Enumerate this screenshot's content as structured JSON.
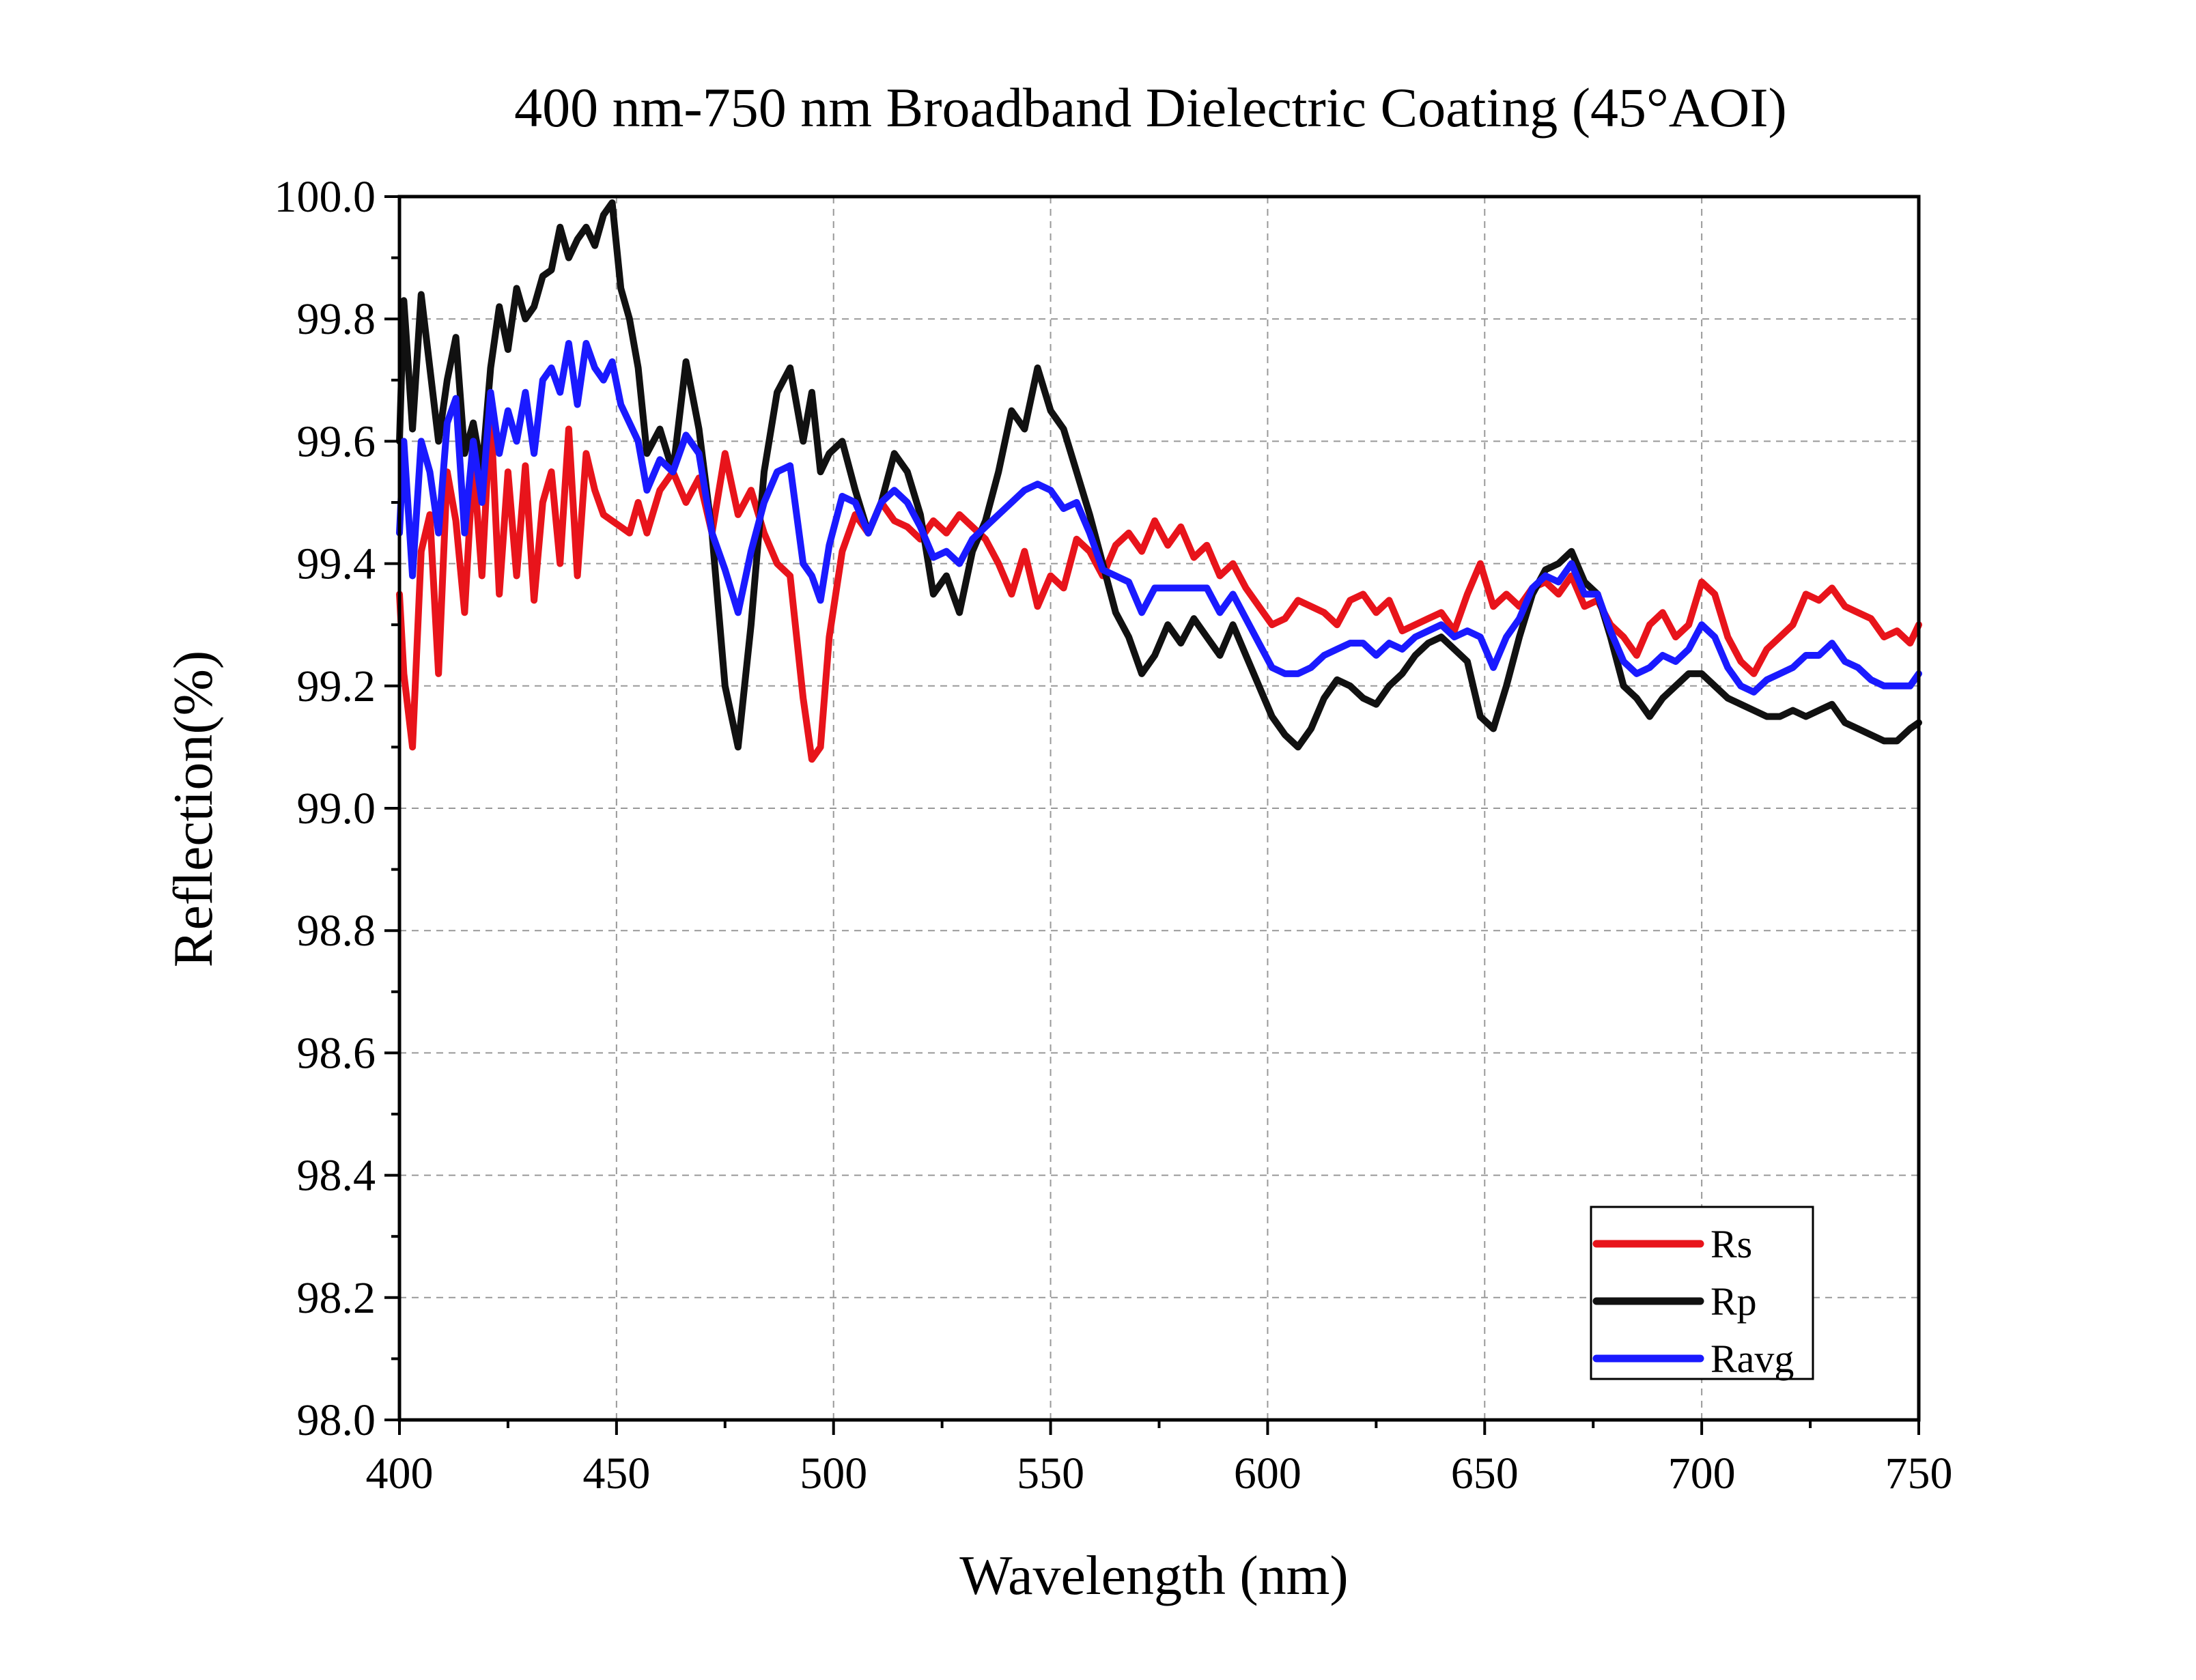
{
  "chart_data": {
    "type": "line",
    "title": "400 nm-750 nm Broadband Dielectric Coating (45°AOI)",
    "xlabel": "Wavelength (nm)",
    "ylabel": "Reflection(%)",
    "xlim": [
      400,
      750
    ],
    "ylim": [
      98.0,
      100.0
    ],
    "xticks": [
      "400",
      "450",
      "500",
      "550",
      "600",
      "650",
      "700",
      "750"
    ],
    "yticks": [
      "98.0",
      "98.2",
      "98.4",
      "98.6",
      "98.8",
      "99.0",
      "99.2",
      "99.4",
      "99.6",
      "99.8",
      "100.0"
    ],
    "grid": true,
    "legend_position": "bottom-right",
    "series": [
      {
        "name": "Rs",
        "color": "#e8141b",
        "x": [
          400,
          401,
          403,
          405,
          407,
          409,
          411,
          413,
          415,
          417,
          419,
          421,
          423,
          425,
          427,
          429,
          431,
          433,
          435,
          437,
          439,
          441,
          443,
          445,
          447,
          449,
          451,
          453,
          455,
          457,
          460,
          463,
          466,
          469,
          472,
          475,
          478,
          481,
          484,
          487,
          490,
          493,
          495,
          497,
          499,
          502,
          505,
          508,
          511,
          514,
          517,
          520,
          523,
          526,
          529,
          532,
          535,
          538,
          541,
          544,
          547,
          550,
          553,
          556,
          559,
          562,
          565,
          568,
          571,
          574,
          577,
          580,
          583,
          586,
          589,
          592,
          595,
          598,
          601,
          604,
          607,
          610,
          613,
          616,
          619,
          622,
          625,
          628,
          631,
          634,
          637,
          640,
          643,
          646,
          649,
          652,
          655,
          658,
          661,
          664,
          667,
          670,
          673,
          676,
          679,
          682,
          685,
          688,
          691,
          694,
          697,
          700,
          703,
          706,
          709,
          712,
          715,
          718,
          721,
          724,
          727,
          730,
          733,
          736,
          739,
          742,
          745,
          748,
          750
        ],
        "values": [
          99.35,
          99.22,
          99.1,
          99.42,
          99.48,
          99.22,
          99.55,
          99.47,
          99.32,
          99.57,
          99.38,
          99.65,
          99.35,
          99.55,
          99.38,
          99.56,
          99.34,
          99.5,
          99.55,
          99.4,
          99.62,
          99.38,
          99.58,
          99.52,
          99.48,
          99.47,
          99.46,
          99.45,
          99.5,
          99.45,
          99.52,
          99.55,
          99.5,
          99.54,
          99.45,
          99.58,
          99.48,
          99.52,
          99.45,
          99.4,
          99.38,
          99.18,
          99.08,
          99.1,
          99.28,
          99.42,
          99.48,
          99.45,
          99.5,
          99.47,
          99.46,
          99.44,
          99.47,
          99.45,
          99.48,
          99.46,
          99.44,
          99.4,
          99.35,
          99.42,
          99.33,
          99.38,
          99.36,
          99.44,
          99.42,
          99.38,
          99.43,
          99.45,
          99.42,
          99.47,
          99.43,
          99.46,
          99.41,
          99.43,
          99.38,
          99.4,
          99.36,
          99.33,
          99.3,
          99.31,
          99.34,
          99.33,
          99.32,
          99.3,
          99.34,
          99.35,
          99.32,
          99.34,
          99.29,
          99.3,
          99.31,
          99.32,
          99.29,
          99.35,
          99.4,
          99.33,
          99.35,
          99.33,
          99.36,
          99.37,
          99.35,
          99.38,
          99.33,
          99.34,
          99.3,
          99.28,
          99.25,
          99.3,
          99.32,
          99.28,
          99.3,
          99.37,
          99.35,
          99.28,
          99.24,
          99.22,
          99.26,
          99.28,
          99.3,
          99.35,
          99.34,
          99.36,
          99.33,
          99.32,
          99.31,
          99.28,
          99.29,
          99.27,
          99.3
        ]
      },
      {
        "name": "Rp",
        "color": "#111111",
        "x": [
          400,
          401,
          403,
          405,
          407,
          409,
          411,
          413,
          415,
          417,
          419,
          421,
          423,
          425,
          427,
          429,
          431,
          433,
          435,
          437,
          439,
          441,
          443,
          445,
          447,
          449,
          451,
          453,
          455,
          457,
          460,
          463,
          466,
          469,
          472,
          475,
          478,
          481,
          484,
          487,
          490,
          493,
          495,
          497,
          499,
          502,
          505,
          508,
          511,
          514,
          517,
          520,
          523,
          526,
          529,
          532,
          535,
          538,
          541,
          544,
          547,
          550,
          553,
          556,
          559,
          562,
          565,
          568,
          571,
          574,
          577,
          580,
          583,
          586,
          589,
          592,
          595,
          598,
          601,
          604,
          607,
          610,
          613,
          616,
          619,
          622,
          625,
          628,
          631,
          634,
          637,
          640,
          643,
          646,
          649,
          652,
          655,
          658,
          661,
          664,
          667,
          670,
          673,
          676,
          679,
          682,
          685,
          688,
          691,
          694,
          697,
          700,
          703,
          706,
          709,
          712,
          715,
          718,
          721,
          724,
          727,
          730,
          733,
          736,
          739,
          742,
          745,
          748,
          750
        ],
        "values": [
          99.6,
          99.83,
          99.62,
          99.84,
          99.72,
          99.6,
          99.7,
          99.77,
          99.58,
          99.63,
          99.55,
          99.72,
          99.82,
          99.75,
          99.85,
          99.8,
          99.82,
          99.87,
          99.88,
          99.95,
          99.9,
          99.93,
          99.95,
          99.92,
          99.97,
          99.99,
          99.85,
          99.8,
          99.72,
          99.58,
          99.62,
          99.55,
          99.73,
          99.62,
          99.45,
          99.2,
          99.1,
          99.3,
          99.55,
          99.68,
          99.72,
          99.6,
          99.68,
          99.55,
          99.58,
          99.6,
          99.52,
          99.45,
          99.5,
          99.58,
          99.55,
          99.48,
          99.35,
          99.38,
          99.32,
          99.42,
          99.47,
          99.55,
          99.65,
          99.62,
          99.72,
          99.65,
          99.62,
          99.55,
          99.48,
          99.4,
          99.32,
          99.28,
          99.22,
          99.25,
          99.3,
          99.27,
          99.31,
          99.28,
          99.25,
          99.3,
          99.25,
          99.2,
          99.15,
          99.12,
          99.1,
          99.13,
          99.18,
          99.21,
          99.2,
          99.18,
          99.17,
          99.2,
          99.22,
          99.25,
          99.27,
          99.28,
          99.26,
          99.24,
          99.15,
          99.13,
          99.2,
          99.28,
          99.35,
          99.39,
          99.4,
          99.42,
          99.37,
          99.35,
          99.28,
          99.2,
          99.18,
          99.15,
          99.18,
          99.2,
          99.22,
          99.22,
          99.2,
          99.18,
          99.17,
          99.16,
          99.15,
          99.15,
          99.16,
          99.15,
          99.16,
          99.17,
          99.14,
          99.13,
          99.12,
          99.11,
          99.11,
          99.13,
          99.14
        ]
      },
      {
        "name": "Ravg",
        "color": "#1a1aff",
        "x": [
          400,
          401,
          403,
          405,
          407,
          409,
          411,
          413,
          415,
          417,
          419,
          421,
          423,
          425,
          427,
          429,
          431,
          433,
          435,
          437,
          439,
          441,
          443,
          445,
          447,
          449,
          451,
          453,
          455,
          457,
          460,
          463,
          466,
          469,
          472,
          475,
          478,
          481,
          484,
          487,
          490,
          493,
          495,
          497,
          499,
          502,
          505,
          508,
          511,
          514,
          517,
          520,
          523,
          526,
          529,
          532,
          535,
          538,
          541,
          544,
          547,
          550,
          553,
          556,
          559,
          562,
          565,
          568,
          571,
          574,
          577,
          580,
          583,
          586,
          589,
          592,
          595,
          598,
          601,
          604,
          607,
          610,
          613,
          616,
          619,
          622,
          625,
          628,
          631,
          634,
          637,
          640,
          643,
          646,
          649,
          652,
          655,
          658,
          661,
          664,
          667,
          670,
          673,
          676,
          679,
          682,
          685,
          688,
          691,
          694,
          697,
          700,
          703,
          706,
          709,
          712,
          715,
          718,
          721,
          724,
          727,
          730,
          733,
          736,
          739,
          742,
          745,
          748,
          750
        ],
        "values": [
          99.45,
          99.6,
          99.38,
          99.6,
          99.55,
          99.45,
          99.63,
          99.67,
          99.45,
          99.6,
          99.5,
          99.68,
          99.58,
          99.65,
          99.6,
          99.68,
          99.58,
          99.7,
          99.72,
          99.68,
          99.76,
          99.66,
          99.76,
          99.72,
          99.7,
          99.73,
          99.66,
          99.63,
          99.6,
          99.52,
          99.57,
          99.55,
          99.61,
          99.58,
          99.45,
          99.39,
          99.32,
          99.42,
          99.5,
          99.55,
          99.56,
          99.4,
          99.38,
          99.34,
          99.43,
          99.51,
          99.5,
          99.45,
          99.5,
          99.52,
          99.5,
          99.46,
          99.41,
          99.42,
          99.4,
          99.44,
          99.46,
          99.48,
          99.5,
          99.52,
          99.53,
          99.52,
          99.49,
          99.5,
          99.45,
          99.39,
          99.38,
          99.37,
          99.32,
          99.36,
          99.36,
          99.36,
          99.36,
          99.36,
          99.32,
          99.35,
          99.31,
          99.27,
          99.23,
          99.22,
          99.22,
          99.23,
          99.25,
          99.26,
          99.27,
          99.27,
          99.25,
          99.27,
          99.26,
          99.28,
          99.29,
          99.3,
          99.28,
          99.29,
          99.28,
          99.23,
          99.28,
          99.31,
          99.36,
          99.38,
          99.37,
          99.4,
          99.35,
          99.35,
          99.29,
          99.24,
          99.22,
          99.23,
          99.25,
          99.24,
          99.26,
          99.3,
          99.28,
          99.23,
          99.2,
          99.19,
          99.21,
          99.22,
          99.23,
          99.25,
          99.25,
          99.27,
          99.24,
          99.23,
          99.21,
          99.2,
          99.2,
          99.2,
          99.22
        ]
      }
    ]
  }
}
